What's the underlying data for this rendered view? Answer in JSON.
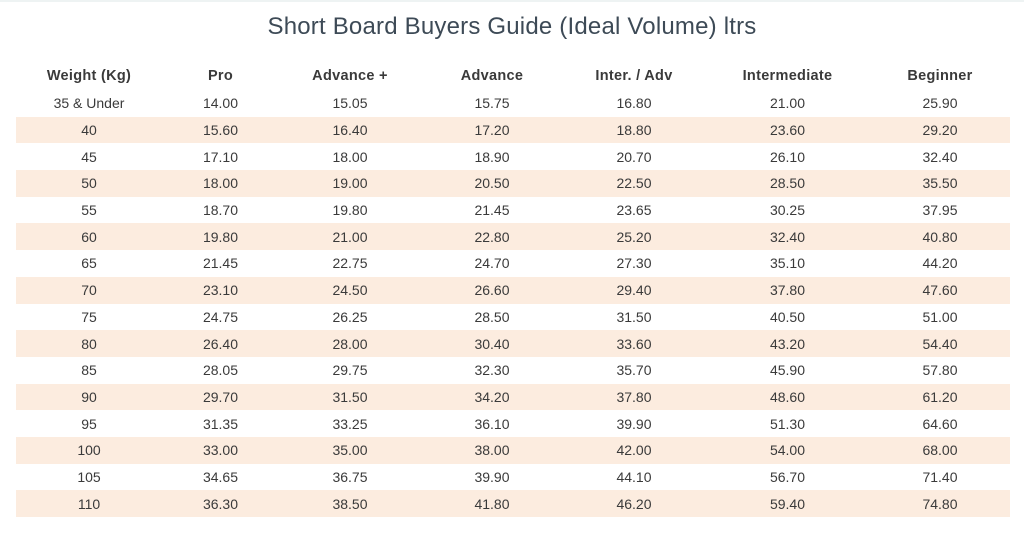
{
  "title": "Short Board Buyers Guide (Ideal Volume) ltrs",
  "table": {
    "headers": [
      "Weight (Kg)",
      "Pro",
      "Advance +",
      "Advance",
      "Inter. / Adv",
      "Intermediate",
      "Beginner"
    ],
    "rows": [
      [
        "35 & Under",
        "14.00",
        "15.05",
        "15.75",
        "16.80",
        "21.00",
        "25.90"
      ],
      [
        "40",
        "15.60",
        "16.40",
        "17.20",
        "18.80",
        "23.60",
        "29.20"
      ],
      [
        "45",
        "17.10",
        "18.00",
        "18.90",
        "20.70",
        "26.10",
        "32.40"
      ],
      [
        "50",
        "18.00",
        "19.00",
        "20.50",
        "22.50",
        "28.50",
        "35.50"
      ],
      [
        "55",
        "18.70",
        "19.80",
        "21.45",
        "23.65",
        "30.25",
        "37.95"
      ],
      [
        "60",
        "19.80",
        "21.00",
        "22.80",
        "25.20",
        "32.40",
        "40.80"
      ],
      [
        "65",
        "21.45",
        "22.75",
        "24.70",
        "27.30",
        "35.10",
        "44.20"
      ],
      [
        "70",
        "23.10",
        "24.50",
        "26.60",
        "29.40",
        "37.80",
        "47.60"
      ],
      [
        "75",
        "24.75",
        "26.25",
        "28.50",
        "31.50",
        "40.50",
        "51.00"
      ],
      [
        "80",
        "26.40",
        "28.00",
        "30.40",
        "33.60",
        "43.20",
        "54.40"
      ],
      [
        "85",
        "28.05",
        "29.75",
        "32.30",
        "35.70",
        "45.90",
        "57.80"
      ],
      [
        "90",
        "29.70",
        "31.50",
        "34.20",
        "37.80",
        "48.60",
        "61.20"
      ],
      [
        "95",
        "31.35",
        "33.25",
        "36.10",
        "39.90",
        "51.30",
        "64.60"
      ],
      [
        "100",
        "33.00",
        "35.00",
        "38.00",
        "42.00",
        "54.00",
        "68.00"
      ],
      [
        "105",
        "34.65",
        "36.75",
        "39.90",
        "44.10",
        "56.70",
        "71.40"
      ],
      [
        "110",
        "36.30",
        "38.50",
        "41.80",
        "46.20",
        "59.40",
        "74.80"
      ]
    ]
  },
  "colors": {
    "title_text": "#3d4a56",
    "row_shade": "#fcecdf",
    "body_text": "#3a3a3a"
  }
}
